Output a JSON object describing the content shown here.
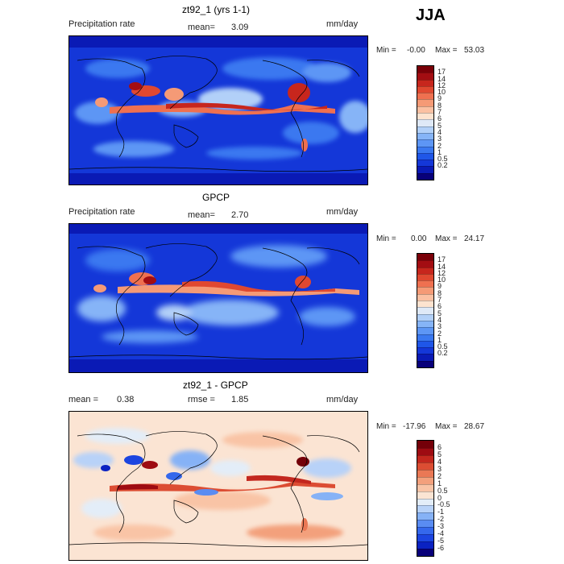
{
  "season": "JJA",
  "colors": {
    "precip_scale": [
      "#08007a",
      "#0a1ab5",
      "#1437d8",
      "#1f56e8",
      "#3a78f0",
      "#5d96f5",
      "#86b4f7",
      "#b2d0f8",
      "#dfe9f7",
      "#fde3cf",
      "#fbc0a2",
      "#f59a76",
      "#ef7050",
      "#e04830",
      "#c7261d",
      "#a30d12",
      "#7a0008"
    ],
    "diff_scale": [
      "#08007a",
      "#0a22c2",
      "#1c45e0",
      "#3568ec",
      "#5a8cf2",
      "#86b2f6",
      "#b8d2f8",
      "#e3edf8",
      "#fbe4d3",
      "#f9c4a6",
      "#f3a07c",
      "#ea7855",
      "#dc4d33",
      "#c3271e",
      "#9e0b12",
      "#740009"
    ]
  },
  "panels": [
    {
      "title": "zt92_1 (yrs 1-1)",
      "left_label": "Precipitation rate",
      "mean_label": "mean=",
      "mean_value": "3.09",
      "units": "mm/day",
      "min_label": "Min =",
      "min_value": "-0.00",
      "max_label": "Max =",
      "max_value": "53.03",
      "levels": [
        "17",
        "14",
        "12",
        "10",
        "9",
        "8",
        "7",
        "6",
        "5",
        "4",
        "3",
        "2",
        "1",
        "0.5",
        "0.2"
      ]
    },
    {
      "title": "GPCP",
      "left_label": "Precipitation rate",
      "mean_label": "mean=",
      "mean_value": "2.70",
      "units": "mm/day",
      "min_label": "Min =",
      "min_value": "0.00",
      "max_label": "Max =",
      "max_value": "24.17",
      "levels": [
        "17",
        "14",
        "12",
        "10",
        "9",
        "8",
        "7",
        "6",
        "5",
        "4",
        "3",
        "2",
        "1",
        "0.5",
        "0.2"
      ]
    },
    {
      "title": "zt92_1 - GPCP",
      "left_label": "mean =",
      "mean_label": "rmse =",
      "left_value": "0.38",
      "mean_value": "1.85",
      "units": "mm/day",
      "min_label": "Min =",
      "min_value": "-17.96",
      "max_label": "Max =",
      "max_value": "28.67",
      "levels": [
        "6",
        "5",
        "4",
        "3",
        "2",
        "1",
        "0.5",
        "0",
        "-0.5",
        "-1",
        "-2",
        "-3",
        "-4",
        "-5",
        "-6"
      ]
    }
  ]
}
